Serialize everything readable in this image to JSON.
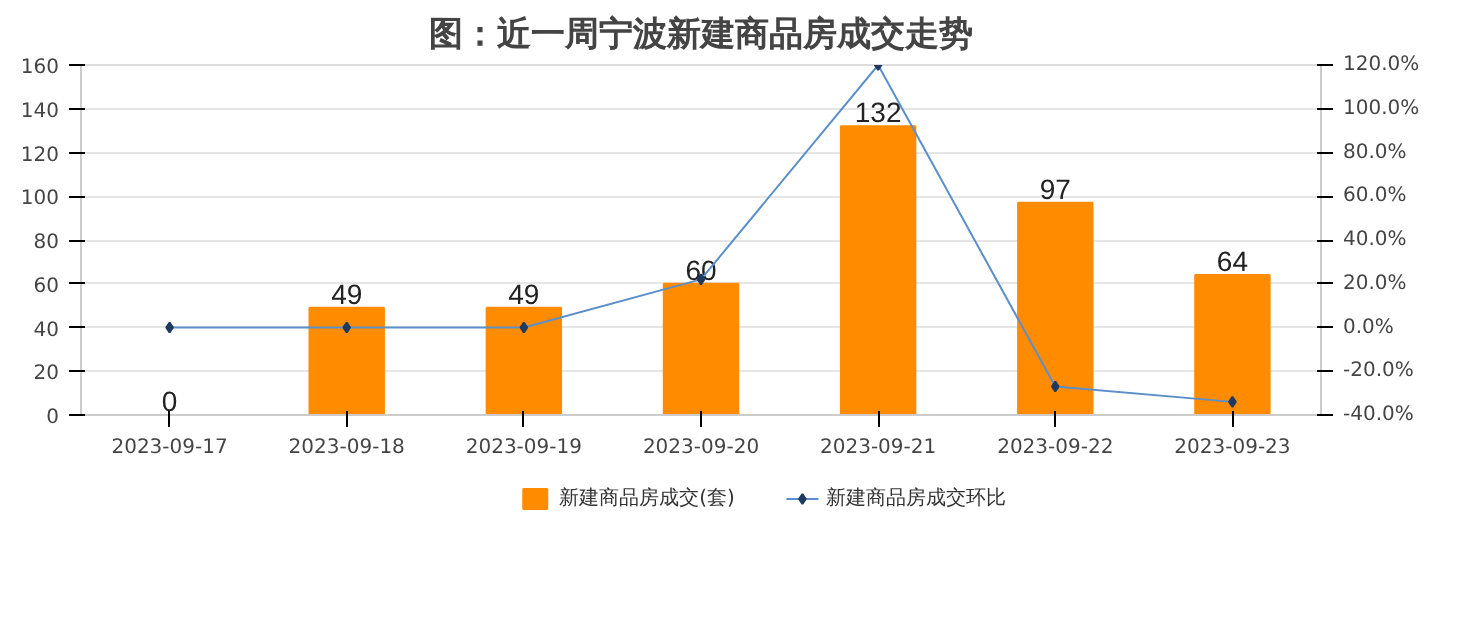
{
  "chart_data": {
    "type": "bar",
    "title": "图：近一周宁波新建商品房成交走势",
    "categories": [
      "2023-09-17",
      "2023-09-18",
      "2023-09-19",
      "2023-09-20",
      "2023-09-21",
      "2023-09-22",
      "2023-09-23"
    ],
    "series": [
      {
        "name": "新建商品房成交(套)",
        "color": "#ff8c00",
        "values": [
          0,
          49,
          49,
          60,
          132,
          97,
          64
        ],
        "data_labels": true
      },
      {
        "name": "新建商品房成交环比",
        "type": "line",
        "axis": "y2",
        "color": "#5b8fc9",
        "marker": "diamond",
        "values": [
          0,
          0,
          0,
          22,
          120,
          -27,
          -34
        ]
      }
    ],
    "ylim": [
      0,
      160
    ],
    "yticks": [
      0,
      20,
      40,
      60,
      80,
      100,
      120,
      140,
      160
    ],
    "y2lim": [
      -40,
      120
    ],
    "y2ticks": [
      {
        "value": -40,
        "label": "-40.0%"
      },
      {
        "value": -20,
        "label": "-20.0%"
      },
      {
        "value": 0,
        "label": "0.0%"
      },
      {
        "value": 20,
        "label": "20.0%"
      },
      {
        "value": 40,
        "label": "40.0%"
      },
      {
        "value": 60,
        "label": "60.0%"
      },
      {
        "value": 80,
        "label": "80.0%"
      },
      {
        "value": 100,
        "label": "100.0%"
      },
      {
        "value": 120,
        "label": "120.0%"
      }
    ],
    "grid": "y",
    "legend": "bottom"
  }
}
